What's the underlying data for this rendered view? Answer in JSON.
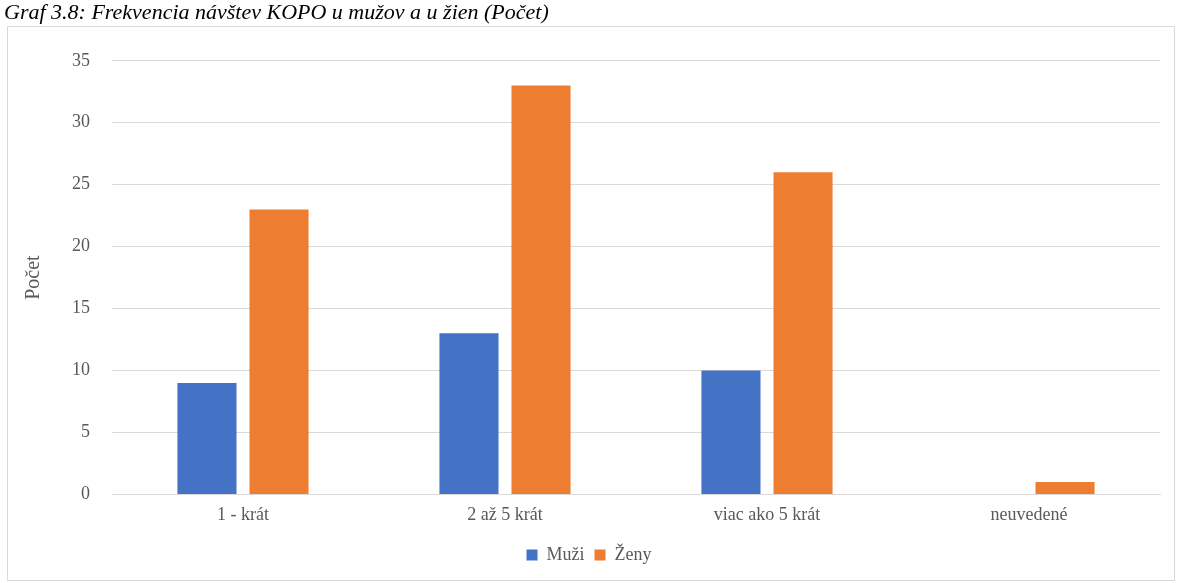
{
  "chart_data": {
    "type": "bar",
    "title": "Graf 3.8: Frekvencia návštev KOPO u mužov a u žien (Počet)",
    "ylabel": "Počet",
    "categories": [
      "1 - krát",
      "2 až 5 krát",
      "viac ako 5 krát",
      "neuvedené"
    ],
    "series": [
      {
        "name": "Muži",
        "color": "#4472c4",
        "values": [
          9,
          13,
          10,
          0
        ]
      },
      {
        "name": "Ženy",
        "color": "#ed7d31",
        "values": [
          23,
          33,
          26,
          1
        ]
      }
    ],
    "ylim": [
      0,
      35
    ],
    "yticks": [
      0,
      5,
      10,
      15,
      20,
      25,
      30,
      35
    ],
    "grid": "y",
    "legend": "bottom"
  }
}
